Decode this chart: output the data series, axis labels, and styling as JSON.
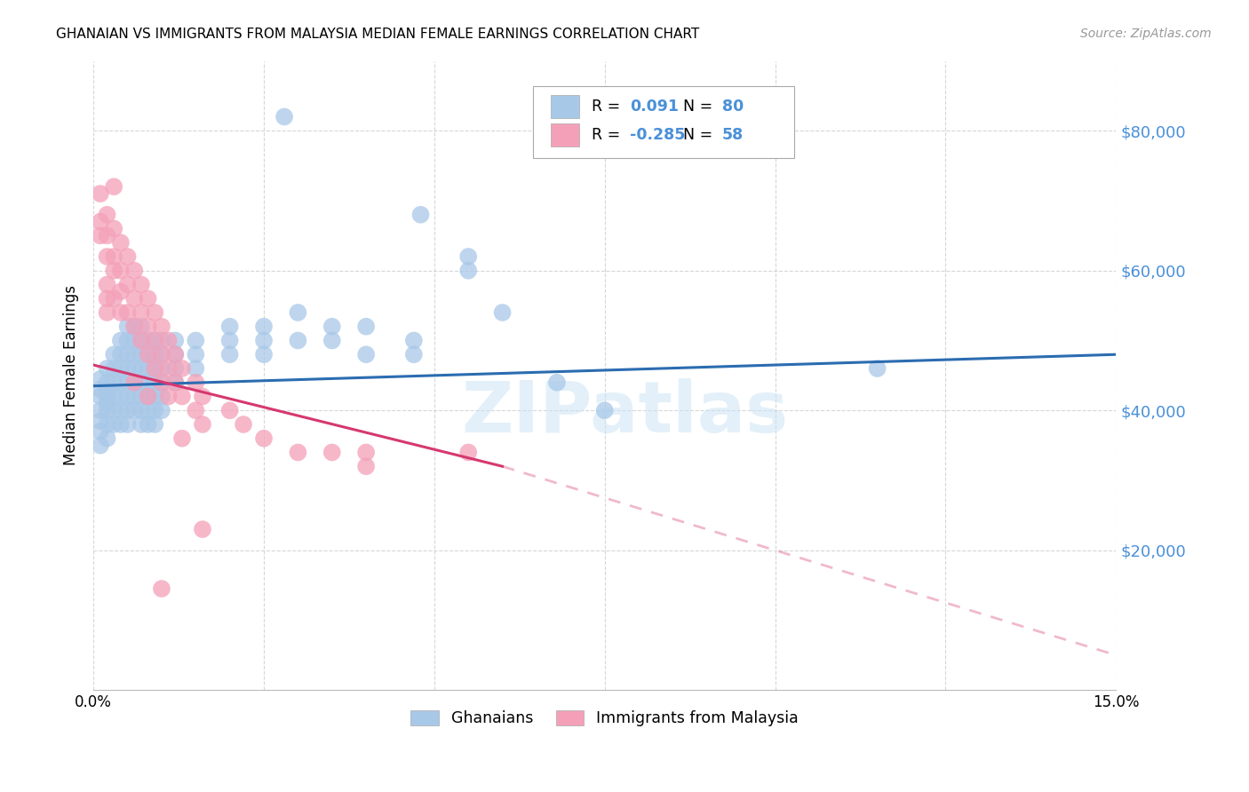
{
  "title": "GHANAIAN VS IMMIGRANTS FROM MALAYSIA MEDIAN FEMALE EARNINGS CORRELATION CHART",
  "source": "Source: ZipAtlas.com",
  "ylabel": "Median Female Earnings",
  "ytick_labels": [
    "$20,000",
    "$40,000",
    "$60,000",
    "$80,000"
  ],
  "ytick_values": [
    20000,
    40000,
    60000,
    80000
  ],
  "xlim": [
    0.0,
    0.15
  ],
  "ylim": [
    0,
    90000
  ],
  "watermark": "ZIPatlas",
  "blue_color": "#a8c8e8",
  "pink_color": "#f4a0b8",
  "blue_line_color": "#2b6cb0",
  "pink_line_color": "#d63870",
  "blue_scatter": [
    [
      0.001,
      44500
    ],
    [
      0.001,
      43000
    ],
    [
      0.001,
      42000
    ],
    [
      0.001,
      40000
    ],
    [
      0.001,
      38500
    ],
    [
      0.001,
      37000
    ],
    [
      0.001,
      35000
    ],
    [
      0.002,
      46000
    ],
    [
      0.002,
      44000
    ],
    [
      0.002,
      43000
    ],
    [
      0.002,
      42000
    ],
    [
      0.002,
      41000
    ],
    [
      0.002,
      40000
    ],
    [
      0.002,
      38000
    ],
    [
      0.002,
      36000
    ],
    [
      0.003,
      48000
    ],
    [
      0.003,
      46000
    ],
    [
      0.003,
      44000
    ],
    [
      0.003,
      42000
    ],
    [
      0.003,
      40000
    ],
    [
      0.003,
      38000
    ],
    [
      0.004,
      50000
    ],
    [
      0.004,
      48000
    ],
    [
      0.004,
      46000
    ],
    [
      0.004,
      44000
    ],
    [
      0.004,
      42000
    ],
    [
      0.004,
      40000
    ],
    [
      0.004,
      38000
    ],
    [
      0.005,
      52000
    ],
    [
      0.005,
      50000
    ],
    [
      0.005,
      48000
    ],
    [
      0.005,
      46000
    ],
    [
      0.005,
      44000
    ],
    [
      0.005,
      42000
    ],
    [
      0.005,
      40000
    ],
    [
      0.005,
      38000
    ],
    [
      0.006,
      52000
    ],
    [
      0.006,
      50000
    ],
    [
      0.006,
      48000
    ],
    [
      0.006,
      46000
    ],
    [
      0.006,
      44000
    ],
    [
      0.006,
      42000
    ],
    [
      0.006,
      40000
    ],
    [
      0.007,
      52000
    ],
    [
      0.007,
      50000
    ],
    [
      0.007,
      48000
    ],
    [
      0.007,
      46000
    ],
    [
      0.007,
      44000
    ],
    [
      0.007,
      42000
    ],
    [
      0.007,
      40000
    ],
    [
      0.007,
      38000
    ],
    [
      0.008,
      50000
    ],
    [
      0.008,
      48000
    ],
    [
      0.008,
      46000
    ],
    [
      0.008,
      44000
    ],
    [
      0.008,
      42000
    ],
    [
      0.008,
      40000
    ],
    [
      0.008,
      38000
    ],
    [
      0.009,
      50000
    ],
    [
      0.009,
      48000
    ],
    [
      0.009,
      46000
    ],
    [
      0.009,
      44000
    ],
    [
      0.009,
      42000
    ],
    [
      0.009,
      40000
    ],
    [
      0.009,
      38000
    ],
    [
      0.01,
      50000
    ],
    [
      0.01,
      48000
    ],
    [
      0.01,
      46000
    ],
    [
      0.01,
      44000
    ],
    [
      0.01,
      42000
    ],
    [
      0.01,
      40000
    ],
    [
      0.012,
      50000
    ],
    [
      0.012,
      48000
    ],
    [
      0.012,
      46000
    ],
    [
      0.012,
      44000
    ],
    [
      0.015,
      50000
    ],
    [
      0.015,
      48000
    ],
    [
      0.015,
      46000
    ],
    [
      0.02,
      52000
    ],
    [
      0.02,
      50000
    ],
    [
      0.02,
      48000
    ],
    [
      0.025,
      52000
    ],
    [
      0.025,
      50000
    ],
    [
      0.025,
      48000
    ],
    [
      0.03,
      54000
    ],
    [
      0.03,
      50000
    ],
    [
      0.035,
      52000
    ],
    [
      0.035,
      50000
    ],
    [
      0.04,
      52000
    ],
    [
      0.04,
      48000
    ],
    [
      0.047,
      50000
    ],
    [
      0.047,
      48000
    ],
    [
      0.055,
      62000
    ],
    [
      0.055,
      60000
    ],
    [
      0.06,
      54000
    ],
    [
      0.028,
      82000
    ],
    [
      0.048,
      68000
    ],
    [
      0.068,
      44000
    ],
    [
      0.075,
      40000
    ],
    [
      0.115,
      46000
    ]
  ],
  "pink_scatter": [
    [
      0.001,
      71000
    ],
    [
      0.001,
      67000
    ],
    [
      0.001,
      65000
    ],
    [
      0.002,
      68000
    ],
    [
      0.002,
      65000
    ],
    [
      0.002,
      62000
    ],
    [
      0.002,
      58000
    ],
    [
      0.002,
      56000
    ],
    [
      0.002,
      54000
    ],
    [
      0.003,
      66000
    ],
    [
      0.003,
      62000
    ],
    [
      0.003,
      60000
    ],
    [
      0.003,
      56000
    ],
    [
      0.004,
      64000
    ],
    [
      0.004,
      60000
    ],
    [
      0.004,
      57000
    ],
    [
      0.004,
      54000
    ],
    [
      0.005,
      62000
    ],
    [
      0.005,
      58000
    ],
    [
      0.005,
      54000
    ],
    [
      0.006,
      60000
    ],
    [
      0.006,
      56000
    ],
    [
      0.006,
      52000
    ],
    [
      0.007,
      58000
    ],
    [
      0.007,
      54000
    ],
    [
      0.007,
      50000
    ],
    [
      0.008,
      56000
    ],
    [
      0.008,
      52000
    ],
    [
      0.008,
      48000
    ],
    [
      0.009,
      54000
    ],
    [
      0.009,
      50000
    ],
    [
      0.009,
      46000
    ],
    [
      0.01,
      52000
    ],
    [
      0.01,
      48000
    ],
    [
      0.01,
      44000
    ],
    [
      0.011,
      50000
    ],
    [
      0.011,
      46000
    ],
    [
      0.011,
      42000
    ],
    [
      0.012,
      48000
    ],
    [
      0.012,
      44000
    ],
    [
      0.013,
      46000
    ],
    [
      0.013,
      42000
    ],
    [
      0.015,
      44000
    ],
    [
      0.015,
      40000
    ],
    [
      0.016,
      42000
    ],
    [
      0.016,
      38000
    ],
    [
      0.02,
      40000
    ],
    [
      0.022,
      38000
    ],
    [
      0.025,
      36000
    ],
    [
      0.03,
      34000
    ],
    [
      0.035,
      34000
    ],
    [
      0.04,
      32000
    ],
    [
      0.008,
      42000
    ],
    [
      0.013,
      36000
    ],
    [
      0.04,
      34000
    ],
    [
      0.055,
      34000
    ],
    [
      0.006,
      44000
    ],
    [
      0.003,
      72000
    ],
    [
      0.01,
      14500
    ],
    [
      0.016,
      23000
    ]
  ],
  "blue_trend": [
    0.0,
    43500,
    0.15,
    48000
  ],
  "pink_solid_trend": [
    0.0,
    46500,
    0.06,
    32000
  ],
  "pink_dash_trend": [
    0.06,
    32000,
    0.15,
    5000
  ]
}
